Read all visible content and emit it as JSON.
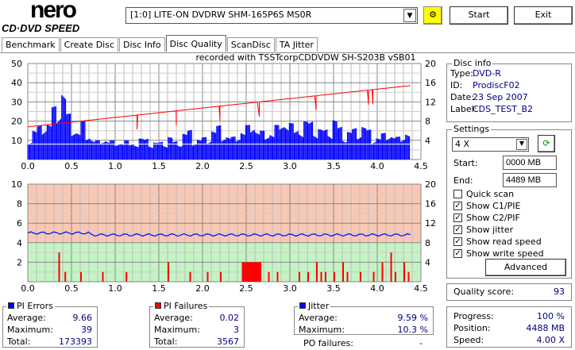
{
  "app": {
    "logo_top": "nero",
    "logo_bottom": "CD·DVD SPEED",
    "drive": "[1:0]  LITE-ON DVDRW SHM-165P6S MS0R",
    "start": "Start",
    "exit": "Exit"
  },
  "tabs": [
    {
      "label": "Benchmark"
    },
    {
      "label": "Create Disc"
    },
    {
      "label": "Disc Info"
    },
    {
      "label": "Disc Quality",
      "active": true
    },
    {
      "label": "ScanDisc"
    },
    {
      "label": "TA Jitter"
    }
  ],
  "disc_info": {
    "title": "Disc info",
    "type_label": "Type:",
    "type": "DVD-R",
    "id_label": "ID:",
    "id": "ProdiscF02",
    "date_label": "Date:",
    "date": "23 Sep 2007",
    "label_label": "Label:",
    "label": "CDS_TEST_B2"
  },
  "settings": {
    "title": "Settings",
    "speed": "4 X",
    "start_label": "Start:",
    "start": "0000 MB",
    "end_label": "End:",
    "end": "4489 MB",
    "checks": [
      {
        "label": "Quick scan",
        "checked": false
      },
      {
        "label": "Show C1/PIE",
        "checked": true
      },
      {
        "label": "Show C2/PIF",
        "checked": true
      },
      {
        "label": "Show jitter",
        "checked": true
      },
      {
        "label": "Show read speed",
        "checked": true
      },
      {
        "label": "Show write speed",
        "checked": true
      }
    ],
    "advanced": "Advanced"
  },
  "quality": {
    "label": "Quality score:",
    "value": "93"
  },
  "progress": {
    "progress_label": "Progress:",
    "progress": "100 %",
    "position_label": "Position:",
    "position": "4488 MB",
    "speed_label": "Speed:",
    "speed": "4.00 X"
  },
  "pi_errors": {
    "title": "PI Errors",
    "avg_label": "Average:",
    "avg": "9.66",
    "max_label": "Maximum:",
    "max": "39",
    "total_label": "Total:",
    "total": "173393",
    "color": "#0000ff"
  },
  "pi_failures": {
    "title": "PI Failures",
    "avg_label": "Average:",
    "avg": "0.02",
    "max_label": "Maximum:",
    "max": "3",
    "total_label": "Total:",
    "total": "3567",
    "color": "#ff0000"
  },
  "jitter": {
    "title": "Jitter",
    "avg_label": "Average:",
    "avg": "9.59 %",
    "max_label": "Maximum:",
    "max": "10.3 %",
    "po_label": "PO failures:",
    "po": "-",
    "color": "#0000ff"
  },
  "chart_data": [
    {
      "type": "bar",
      "title": "recorded with TSSTcorpCDDVDW SH-S203B  vSB01",
      "x_ticks": [
        "0.0",
        "0.5",
        "1.0",
        "1.5",
        "2.0",
        "2.5",
        "3.0",
        "3.5",
        "4.0",
        "4.5"
      ],
      "xlim": [
        0,
        4.5
      ],
      "ylim": [
        0,
        50
      ],
      "y_ticks": [
        "50",
        "40",
        "30",
        "20",
        "10"
      ],
      "y2lim": [
        0,
        20
      ],
      "y2_ticks": [
        "20",
        "16",
        "12",
        "8",
        "4"
      ],
      "series": [
        {
          "name": "PI Errors",
          "x_range": [
            0,
            4.38
          ],
          "values": [
            14,
            16,
            18,
            22,
            20,
            28,
            30,
            38,
            24,
            18,
            16,
            20,
            14,
            12,
            10,
            11,
            12,
            10,
            9,
            11,
            10,
            9,
            10,
            11,
            12,
            10,
            9,
            10,
            11,
            12,
            10,
            12,
            14,
            16,
            13,
            11,
            12,
            14,
            16,
            18,
            15,
            13,
            12,
            14,
            16,
            18,
            20,
            17,
            15,
            14,
            16,
            18,
            20,
            22,
            19,
            17,
            18,
            20,
            22,
            18,
            16,
            17,
            19,
            21,
            18,
            16,
            15,
            17,
            19,
            18,
            16,
            14,
            12,
            14,
            16,
            13,
            12,
            14,
            15
          ]
        },
        {
          "name": "Read speed",
          "unit": "X",
          "x": [
            0,
            4.38
          ],
          "y": [
            6.8,
            15.4
          ],
          "dips_at": [
            1.25,
            1.7,
            2.2,
            2.65,
            3.3,
            3.9,
            3.95
          ]
        }
      ]
    },
    {
      "type": "bar",
      "x_ticks": [
        "0.0",
        "0.5",
        "1.0",
        "1.5",
        "2.0",
        "2.5",
        "3.0",
        "3.5",
        "4.0",
        "4.5"
      ],
      "xlim": [
        0,
        4.5
      ],
      "ylim": [
        0,
        10
      ],
      "y_ticks": [
        "10",
        "8",
        "6",
        "4",
        "2"
      ],
      "y2lim": [
        0,
        20
      ],
      "y2_ticks": [
        "20",
        "16",
        "12",
        "8",
        "4"
      ],
      "series": [
        {
          "name": "PI Failures",
          "points": [
            [
              0.35,
              3
            ],
            [
              0.42,
              1
            ],
            [
              0.6,
              1
            ],
            [
              0.85,
              1
            ],
            [
              1.12,
              1
            ],
            [
              1.6,
              2
            ],
            [
              1.85,
              1
            ],
            [
              2.05,
              1
            ],
            [
              2.2,
              1
            ],
            [
              2.45,
              2
            ],
            [
              2.5,
              2
            ],
            [
              2.55,
              2
            ],
            [
              2.6,
              2
            ],
            [
              2.75,
              1
            ],
            [
              2.85,
              1
            ],
            [
              3.1,
              1
            ],
            [
              3.2,
              1
            ],
            [
              3.3,
              2
            ],
            [
              3.35,
              1
            ],
            [
              3.4,
              1
            ],
            [
              3.5,
              1
            ],
            [
              3.6,
              2
            ],
            [
              3.65,
              1
            ],
            [
              3.8,
              1
            ],
            [
              3.95,
              1
            ],
            [
              4.05,
              2
            ],
            [
              4.15,
              3
            ],
            [
              4.2,
              1
            ],
            [
              4.3,
              2
            ],
            [
              4.35,
              1
            ]
          ]
        },
        {
          "name": "Jitter",
          "unit": "%",
          "y_right": true,
          "avg": 9.59,
          "max": 10.3
        }
      ]
    }
  ]
}
